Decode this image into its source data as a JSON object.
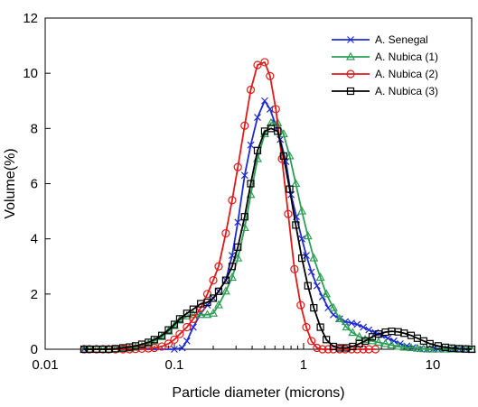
{
  "chart_data": {
    "type": "line",
    "xlabel": "Particle diameter (microns)",
    "ylabel": "Volume(%)",
    "xscale": "log",
    "xlim": [
      0.01,
      20
    ],
    "ylim": [
      0,
      12
    ],
    "xticks": [
      0.01,
      0.1,
      1,
      10
    ],
    "xtick_labels": [
      "0.01",
      "0.1",
      "1",
      "10"
    ],
    "yticks": [
      0,
      2,
      4,
      6,
      8,
      10,
      12
    ],
    "ytick_labels": [
      "0",
      "2",
      "4",
      "6",
      "8",
      "10",
      "12"
    ],
    "grid": false,
    "legend_position": "top-right",
    "series": [
      {
        "name": "A. Senegal",
        "color": "#1f2bd1",
        "marker": "x",
        "x": [
          0.02,
          0.1,
          0.115,
          0.125,
          0.14,
          0.16,
          0.18,
          0.2,
          0.22,
          0.25,
          0.28,
          0.31,
          0.35,
          0.39,
          0.44,
          0.5,
          0.55,
          0.6,
          0.66,
          0.73,
          0.8,
          0.88,
          0.97,
          1.05,
          1.15,
          1.27,
          1.4,
          1.55,
          1.7,
          1.9,
          2.1,
          2.35,
          2.6,
          2.9,
          3.2,
          3.6,
          4.0,
          4.5,
          5.0,
          5.6,
          6.3,
          7.0,
          8.0,
          9.0,
          10.0,
          11.0,
          12.5,
          14.0,
          16.0,
          18.0
        ],
        "y": [
          0,
          0,
          0.05,
          0.3,
          0.8,
          1.3,
          1.6,
          1.85,
          2.1,
          2.5,
          3.4,
          4.6,
          6.3,
          7.4,
          8.4,
          9.0,
          8.7,
          8.2,
          7.6,
          6.8,
          5.6,
          4.8,
          4.0,
          3.4,
          2.8,
          2.3,
          1.9,
          1.5,
          1.25,
          1.1,
          1.0,
          0.95,
          0.9,
          0.8,
          0.7,
          0.6,
          0.5,
          0.4,
          0.3,
          0.2,
          0.12,
          0.06,
          0.02,
          0,
          0,
          0,
          0,
          0,
          0,
          0
        ]
      },
      {
        "name": "A. Nubica (1)",
        "color": "#2e9e55",
        "marker": "triangle",
        "x": [
          0.02,
          0.022,
          0.025,
          0.028,
          0.031,
          0.035,
          0.04,
          0.045,
          0.05,
          0.056,
          0.063,
          0.07,
          0.08,
          0.09,
          0.1,
          0.11,
          0.125,
          0.14,
          0.16,
          0.18,
          0.2,
          0.22,
          0.25,
          0.28,
          0.31,
          0.35,
          0.39,
          0.44,
          0.5,
          0.56,
          0.63,
          0.7,
          0.78,
          0.87,
          0.97,
          1.08,
          1.2,
          1.35,
          1.5,
          1.7,
          1.9,
          2.15,
          2.4,
          2.7,
          3.0,
          3.4,
          3.8,
          4.3,
          4.8,
          5.4,
          6.0,
          6.8,
          7.6,
          8.5,
          9.5,
          11.0,
          12.5,
          14.0,
          16.0,
          18.0,
          20.0
        ],
        "y": [
          0,
          0,
          0,
          0,
          0,
          0,
          0.01,
          0.03,
          0.06,
          0.1,
          0.2,
          0.3,
          0.45,
          0.65,
          0.85,
          1.05,
          1.2,
          1.25,
          1.25,
          1.25,
          1.3,
          1.6,
          2.1,
          2.6,
          3.3,
          4.4,
          5.6,
          6.9,
          7.8,
          8.2,
          8.2,
          7.8,
          7.0,
          6.0,
          5.0,
          4.1,
          3.3,
          2.6,
          2.0,
          1.5,
          1.1,
          0.8,
          0.6,
          0.45,
          0.35,
          0.3,
          0.25,
          0.2,
          0.15,
          0.1,
          0.07,
          0.05,
          0.03,
          0.01,
          0,
          0,
          0,
          0,
          0,
          0,
          0
        ]
      },
      {
        "name": "A. Nubica (2)",
        "color": "#e01a1a",
        "marker": "circle",
        "x": [
          0.02,
          0.022,
          0.025,
          0.028,
          0.031,
          0.035,
          0.04,
          0.045,
          0.05,
          0.056,
          0.063,
          0.07,
          0.08,
          0.09,
          0.1,
          0.11,
          0.125,
          0.14,
          0.16,
          0.18,
          0.2,
          0.22,
          0.25,
          0.28,
          0.31,
          0.35,
          0.39,
          0.44,
          0.5,
          0.55,
          0.61,
          0.68,
          0.76,
          0.85,
          0.95,
          1.05,
          1.15,
          1.27,
          1.4,
          1.55,
          1.7,
          1.9,
          2.1,
          2.35,
          2.6,
          2.9,
          3.2,
          3.6
        ],
        "y": [
          0,
          0,
          0,
          0,
          0,
          0,
          0,
          0,
          0.01,
          0.02,
          0.03,
          0.05,
          0.1,
          0.2,
          0.35,
          0.55,
          0.8,
          1.1,
          1.5,
          2.0,
          2.5,
          3.0,
          4.2,
          5.4,
          6.6,
          8.1,
          9.4,
          10.3,
          10.4,
          9.9,
          8.7,
          6.9,
          4.9,
          2.9,
          1.6,
          0.8,
          0.3,
          0.05,
          0,
          0,
          0,
          0,
          0,
          0,
          0,
          0,
          0,
          0
        ]
      },
      {
        "name": "A. Nubica (3)",
        "color": "#000000",
        "marker": "square",
        "x": [
          0.02,
          0.022,
          0.025,
          0.028,
          0.031,
          0.035,
          0.04,
          0.045,
          0.05,
          0.056,
          0.063,
          0.07,
          0.08,
          0.09,
          0.1,
          0.11,
          0.125,
          0.14,
          0.16,
          0.18,
          0.2,
          0.22,
          0.25,
          0.28,
          0.31,
          0.35,
          0.39,
          0.44,
          0.5,
          0.56,
          0.63,
          0.7,
          0.78,
          0.87,
          0.97,
          1.08,
          1.2,
          1.35,
          1.5,
          1.7,
          1.9,
          2.15,
          2.4,
          2.7,
          3.0,
          3.4,
          3.8,
          4.3,
          4.8,
          5.4,
          6.0,
          6.8,
          7.6,
          8.5,
          9.5,
          11.0,
          12.5,
          14.0,
          16.0,
          18.0,
          20.0
        ],
        "y": [
          0,
          0,
          0,
          0,
          0,
          0.02,
          0.05,
          0.08,
          0.12,
          0.18,
          0.25,
          0.35,
          0.5,
          0.7,
          0.9,
          1.1,
          1.3,
          1.45,
          1.65,
          1.7,
          1.85,
          2.1,
          2.5,
          3.0,
          3.7,
          4.8,
          6.0,
          7.2,
          7.9,
          8.0,
          7.9,
          7.0,
          5.8,
          4.5,
          3.3,
          2.3,
          1.5,
          0.8,
          0.35,
          0.1,
          0.05,
          0.05,
          0.1,
          0.2,
          0.3,
          0.45,
          0.55,
          0.62,
          0.65,
          0.63,
          0.58,
          0.5,
          0.4,
          0.3,
          0.2,
          0.12,
          0.07,
          0.04,
          0.02,
          0.01,
          0
        ]
      }
    ]
  }
}
